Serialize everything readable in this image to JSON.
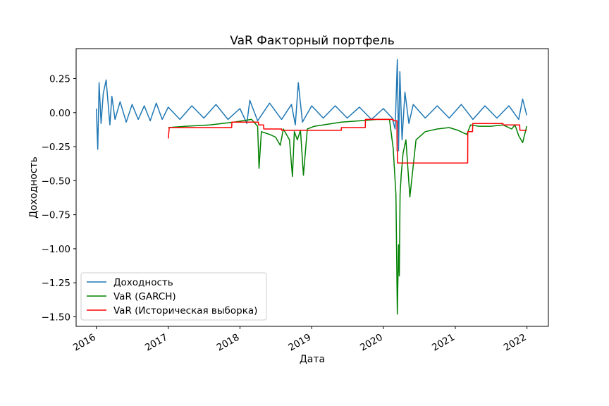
{
  "chart_data": {
    "type": "line",
    "title": "VaR Факторный портфель",
    "xlabel": "Дата",
    "ylabel": "Доходность",
    "xlim": [
      "2015-09-20",
      "2022-04-20"
    ],
    "ylim": [
      -1.57,
      0.47
    ],
    "x_ticks": [
      "2016-01-01",
      "2017-01-01",
      "2018-01-01",
      "2019-01-01",
      "2020-01-01",
      "2021-01-01",
      "2022-01-01"
    ],
    "x_tick_labels": [
      "2016",
      "2017",
      "2018",
      "2019",
      "2020",
      "2021",
      "2022"
    ],
    "y_ticks": [
      0.25,
      0.0,
      -0.25,
      -0.5,
      -0.75,
      -1.0,
      -1.25,
      -1.5
    ],
    "y_tick_labels": [
      "0.25",
      "0.00",
      "−0.25",
      "−0.50",
      "−0.75",
      "−1.00",
      "−1.25",
      "−1.50"
    ],
    "grid": false,
    "legend_position": "bottom-left",
    "series": [
      {
        "name": "Доходность",
        "color": "#1f77b4",
        "x": [
          "2016-01-01",
          "2016-01-08",
          "2016-01-15",
          "2016-01-25",
          "2016-02-05",
          "2016-02-20",
          "2016-03-10",
          "2016-03-20",
          "2016-04-05",
          "2016-05-01",
          "2016-06-01",
          "2016-07-01",
          "2016-08-01",
          "2016-09-01",
          "2016-10-01",
          "2016-11-01",
          "2016-12-01",
          "2017-01-01",
          "2017-03-01",
          "2017-05-01",
          "2017-07-01",
          "2017-09-01",
          "2017-11-01",
          "2018-01-01",
          "2018-02-05",
          "2018-02-20",
          "2018-04-01",
          "2018-06-01",
          "2018-08-01",
          "2018-09-20",
          "2018-10-10",
          "2018-10-25",
          "2018-11-15",
          "2019-01-01",
          "2019-03-01",
          "2019-05-01",
          "2019-07-01",
          "2019-09-01",
          "2019-11-01",
          "2020-01-01",
          "2020-02-15",
          "2020-03-01",
          "2020-03-12",
          "2020-03-18",
          "2020-03-25",
          "2020-04-05",
          "2020-04-20",
          "2020-05-10",
          "2020-06-01",
          "2020-08-01",
          "2020-10-01",
          "2020-12-01",
          "2021-02-01",
          "2021-04-01",
          "2021-06-01",
          "2021-08-01",
          "2021-10-01",
          "2021-11-20",
          "2021-12-10",
          "2021-12-31"
        ],
        "y": [
          0.03,
          -0.27,
          0.22,
          -0.08,
          0.14,
          0.24,
          -0.09,
          0.12,
          -0.05,
          0.08,
          -0.07,
          0.06,
          -0.05,
          0.05,
          -0.06,
          0.07,
          -0.05,
          0.04,
          -0.05,
          0.05,
          -0.04,
          0.06,
          -0.05,
          0.03,
          -0.08,
          0.09,
          -0.06,
          0.07,
          -0.05,
          0.06,
          -0.09,
          0.22,
          -0.07,
          0.05,
          -0.04,
          0.05,
          -0.04,
          0.04,
          -0.05,
          0.03,
          -0.04,
          -0.12,
          0.39,
          -0.28,
          0.3,
          -0.2,
          0.15,
          -0.08,
          0.06,
          -0.04,
          0.05,
          -0.04,
          0.06,
          -0.05,
          0.05,
          -0.04,
          0.05,
          -0.05,
          0.1,
          -0.02
        ]
      },
      {
        "name": "VaR (GARCH)",
        "color": "#008000",
        "x": [
          "2017-01-01",
          "2017-04-01",
          "2017-08-01",
          "2017-12-01",
          "2018-03-01",
          "2018-04-01",
          "2018-04-08",
          "2018-04-20",
          "2018-06-01",
          "2018-07-01",
          "2018-07-25",
          "2018-08-10",
          "2018-09-10",
          "2018-09-25",
          "2018-10-05",
          "2018-10-20",
          "2018-11-05",
          "2018-11-20",
          "2018-12-10",
          "2019-01-15",
          "2019-03-01",
          "2019-06-01",
          "2019-09-01",
          "2019-12-01",
          "2020-02-01",
          "2020-02-20",
          "2020-03-05",
          "2020-03-12",
          "2020-03-18",
          "2020-03-22",
          "2020-03-26",
          "2020-04-01",
          "2020-04-10",
          "2020-04-25",
          "2020-05-15",
          "2020-06-15",
          "2020-08-01",
          "2020-10-01",
          "2020-12-01",
          "2021-01-15",
          "2021-03-01",
          "2021-03-20",
          "2021-05-01",
          "2021-07-01",
          "2021-09-01",
          "2021-10-15",
          "2021-11-01",
          "2021-11-20",
          "2021-12-10",
          "2021-12-31"
        ],
        "y": [
          -0.11,
          -0.1,
          -0.09,
          -0.07,
          -0.05,
          -0.1,
          -0.41,
          -0.14,
          -0.16,
          -0.18,
          -0.24,
          -0.12,
          -0.2,
          -0.47,
          -0.14,
          -0.2,
          -0.13,
          -0.46,
          -0.12,
          -0.1,
          -0.09,
          -0.07,
          -0.06,
          -0.05,
          -0.05,
          -0.26,
          -0.6,
          -1.48,
          -0.97,
          -1.2,
          -0.6,
          -0.45,
          -0.3,
          -0.2,
          -0.62,
          -0.2,
          -0.14,
          -0.12,
          -0.11,
          -0.13,
          -0.16,
          -0.09,
          -0.1,
          -0.1,
          -0.09,
          -0.12,
          -0.09,
          -0.17,
          -0.22,
          -0.1
        ]
      },
      {
        "name": "VaR (Историческая выборка)",
        "color": "#ff0000",
        "x": [
          "2017-01-01",
          "2017-01-05",
          "2017-01-06",
          "2017-07-01",
          "2017-11-20",
          "2017-11-21",
          "2018-04-05",
          "2018-04-06",
          "2018-05-01",
          "2018-05-02",
          "2018-08-01",
          "2018-08-02",
          "2019-06-01",
          "2019-06-02",
          "2019-10-01",
          "2019-10-02",
          "2020-02-20",
          "2020-02-21",
          "2020-03-10",
          "2020-03-11",
          "2020-03-12",
          "2020-03-13",
          "2021-03-05",
          "2021-03-06",
          "2021-03-30",
          "2021-03-31",
          "2021-09-01",
          "2021-09-02",
          "2021-11-25",
          "2021-11-26",
          "2021-12-31"
        ],
        "y": [
          -0.19,
          -0.13,
          -0.11,
          -0.11,
          -0.11,
          -0.07,
          -0.07,
          -0.09,
          -0.09,
          -0.12,
          -0.12,
          -0.13,
          -0.13,
          -0.11,
          -0.11,
          -0.05,
          -0.05,
          -0.06,
          -0.06,
          -0.28,
          -0.28,
          -0.37,
          -0.37,
          -0.14,
          -0.14,
          -0.08,
          -0.08,
          -0.09,
          -0.09,
          -0.13,
          -0.13
        ]
      }
    ]
  }
}
